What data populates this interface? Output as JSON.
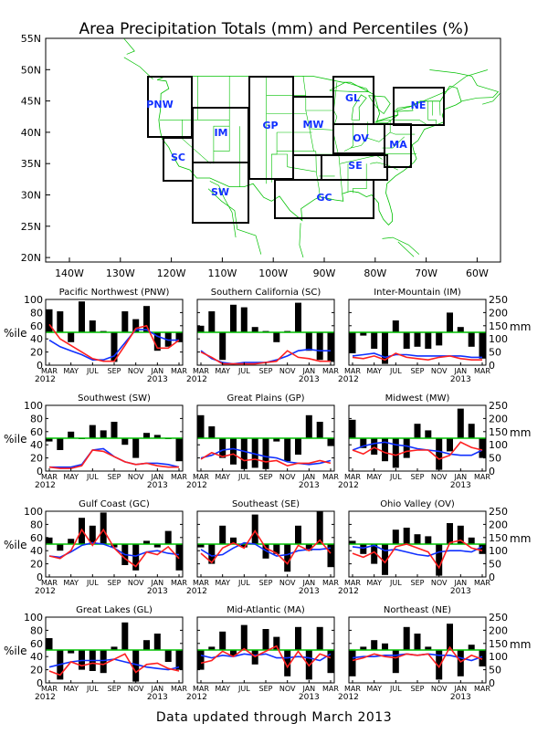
{
  "title": "Area Precipitation Totals (mm) and Percentiles (%)",
  "footer": "Data updated through March 2013",
  "colors": {
    "percentile_line": "#ff2020",
    "mm_line": "#1030ff",
    "median_line": "#00c000",
    "bars": "#000000",
    "map_lines": "#00c000",
    "region_labels": "#1030ff"
  },
  "map": {
    "lat_labels": [
      "55N",
      "50N",
      "45N",
      "40N",
      "35N",
      "30N",
      "25N",
      "20N"
    ],
    "lon_labels": [
      "140W",
      "130W",
      "120W",
      "110W",
      "100W",
      "90W",
      "80W",
      "70W",
      "60W"
    ],
    "regions": [
      "PNW",
      "SC",
      "IM",
      "SW",
      "GP",
      "MW",
      "GL",
      "OV",
      "MA",
      "SE",
      "GC",
      "NE"
    ]
  },
  "panel_common": {
    "pct_ticks": [
      "0",
      "20",
      "40",
      "60",
      "80",
      "100"
    ],
    "mm_ticks": [
      "0",
      "50",
      "100",
      "150",
      "200",
      "250"
    ],
    "pct_label": "%ile",
    "mm_label": "mm",
    "month_labels": [
      "MAR",
      "MAY",
      "JUL",
      "SEP",
      "NOV",
      "JAN",
      "MAR"
    ],
    "year_start": "2012",
    "year_mid": "2013"
  },
  "chart_data": [
    {
      "type": "bar",
      "title": "Pacific Northwest (PNW)",
      "ylim_pct": [
        0,
        100
      ],
      "ylim_mm": [
        0,
        250
      ],
      "months": [
        "Mar 2012",
        "Apr 2012",
        "May 2012",
        "Jun 2012",
        "Jul 2012",
        "Aug 2012",
        "Sep 2012",
        "Oct 2012",
        "Nov 2012",
        "Dec 2012",
        "Jan 2013",
        "Feb 2013",
        "Mar 2013"
      ],
      "series": [
        {
          "name": "percentile",
          "values": [
            85,
            82,
            35,
            97,
            68,
            52,
            5,
            82,
            70,
            90,
            22,
            28,
            35
          ]
        },
        {
          "name": "precip_mm",
          "values": [
            155,
            100,
            75,
            50,
            25,
            15,
            15,
            75,
            140,
            150,
            65,
            65,
            95
          ]
        },
        {
          "name": "normal_mm",
          "values": [
            95,
            70,
            55,
            40,
            20,
            20,
            35,
            85,
            135,
            135,
            110,
            95,
            95
          ]
        }
      ]
    },
    {
      "type": "bar",
      "title": "Southern California (SC)",
      "ylim_pct": [
        0,
        100
      ],
      "ylim_mm": [
        0,
        250
      ],
      "months": [
        "Mar 2012",
        "Apr 2012",
        "May 2012",
        "Jun 2012",
        "Jul 2012",
        "Aug 2012",
        "Sep 2012",
        "Oct 2012",
        "Nov 2012",
        "Dec 2012",
        "Jan 2013",
        "Feb 2013",
        "Mar 2013"
      ],
      "series": [
        {
          "name": "percentile",
          "values": [
            60,
            82,
            8,
            92,
            88,
            58,
            52,
            35,
            52,
            95,
            22,
            8,
            5
          ]
        },
        {
          "name": "precip_mm",
          "values": [
            50,
            30,
            5,
            5,
            5,
            5,
            10,
            15,
            55,
            30,
            25,
            15,
            15
          ]
        },
        {
          "name": "normal_mm",
          "values": [
            55,
            25,
            10,
            5,
            10,
            10,
            10,
            20,
            35,
            55,
            60,
            55,
            55
          ]
        }
      ]
    },
    {
      "type": "bar",
      "title": "Inter-Mountain (IM)",
      "ylim_pct": [
        0,
        100
      ],
      "ylim_mm": [
        0,
        250
      ],
      "months": [
        "Mar 2012",
        "Apr 2012",
        "May 2012",
        "Jun 2012",
        "Jul 2012",
        "Aug 2012",
        "Sep 2012",
        "Oct 2012",
        "Nov 2012",
        "Dec 2012",
        "Jan 2013",
        "Feb 2013",
        "Mar 2013"
      ],
      "series": [
        {
          "name": "percentile",
          "values": [
            18,
            45,
            25,
            2,
            68,
            25,
            28,
            25,
            30,
            80,
            58,
            28,
            10
          ]
        },
        {
          "name": "precip_mm",
          "values": [
            30,
            25,
            35,
            20,
            45,
            30,
            25,
            20,
            30,
            35,
            25,
            20,
            20
          ]
        },
        {
          "name": "normal_mm",
          "values": [
            35,
            40,
            45,
            30,
            40,
            40,
            35,
            35,
            35,
            35,
            35,
            30,
            30
          ]
        }
      ]
    },
    {
      "type": "bar",
      "title": "Southwest (SW)",
      "ylim_pct": [
        0,
        100
      ],
      "ylim_mm": [
        0,
        250
      ],
      "months": [
        "Mar 2012",
        "Apr 2012",
        "May 2012",
        "Jun 2012",
        "Jul 2012",
        "Aug 2012",
        "Sep 2012",
        "Oct 2012",
        "Nov 2012",
        "Dec 2012",
        "Jan 2013",
        "Feb 2013",
        "Mar 2013"
      ],
      "series": [
        {
          "name": "percentile",
          "values": [
            45,
            32,
            60,
            50,
            70,
            62,
            75,
            40,
            20,
            58,
            55,
            50,
            15
          ]
        },
        {
          "name": "precip_mm",
          "values": [
            15,
            10,
            10,
            20,
            80,
            75,
            55,
            35,
            25,
            30,
            20,
            15,
            15
          ]
        },
        {
          "name": "normal_mm",
          "values": [
            15,
            15,
            15,
            25,
            80,
            85,
            55,
            35,
            25,
            30,
            30,
            25,
            15
          ]
        }
      ]
    },
    {
      "type": "bar",
      "title": "Great Plains (GP)",
      "ylim_pct": [
        0,
        100
      ],
      "ylim_mm": [
        0,
        250
      ],
      "months": [
        "Mar 2012",
        "Apr 2012",
        "May 2012",
        "Jun 2012",
        "Jul 2012",
        "Aug 2012",
        "Sep 2012",
        "Oct 2012",
        "Nov 2012",
        "Dec 2012",
        "Jan 2013",
        "Feb 2013",
        "Mar 2013"
      ],
      "series": [
        {
          "name": "percentile",
          "values": [
            85,
            68,
            20,
            10,
            3,
            5,
            3,
            45,
            15,
            25,
            85,
            75,
            38
          ]
        },
        {
          "name": "precip_mm",
          "values": [
            45,
            70,
            55,
            65,
            40,
            45,
            35,
            40,
            20,
            30,
            30,
            40,
            30
          ]
        },
        {
          "name": "normal_mm",
          "values": [
            50,
            60,
            80,
            85,
            75,
            65,
            55,
            50,
            35,
            30,
            25,
            30,
            40
          ]
        }
      ]
    },
    {
      "type": "bar",
      "title": "Midwest (MW)",
      "ylim_pct": [
        0,
        100
      ],
      "ylim_mm": [
        0,
        250
      ],
      "months": [
        "Mar 2012",
        "Apr 2012",
        "May 2012",
        "Jun 2012",
        "Jul 2012",
        "Aug 2012",
        "Sep 2012",
        "Oct 2012",
        "Nov 2012",
        "Dec 2012",
        "Jan 2013",
        "Feb 2013",
        "Mar 2013"
      ],
      "series": [
        {
          "name": "percentile",
          "values": [
            78,
            35,
            25,
            15,
            5,
            20,
            72,
            62,
            2,
            30,
            95,
            72,
            20
          ]
        },
        {
          "name": "precip_mm",
          "values": [
            80,
            65,
            90,
            70,
            60,
            75,
            80,
            80,
            45,
            60,
            110,
            90,
            80
          ]
        },
        {
          "name": "normal_mm",
          "values": [
            80,
            95,
            105,
            110,
            100,
            95,
            85,
            80,
            75,
            65,
            60,
            60,
            80
          ]
        }
      ]
    },
    {
      "type": "bar",
      "title": "Gulf Coast (GC)",
      "ylim_pct": [
        0,
        100
      ],
      "ylim_mm": [
        0,
        250
      ],
      "months": [
        "Mar 2012",
        "Apr 2012",
        "May 2012",
        "Jun 2012",
        "Jul 2012",
        "Aug 2012",
        "Sep 2012",
        "Oct 2012",
        "Nov 2012",
        "Dec 2012",
        "Jan 2013",
        "Feb 2013",
        "Mar 2013"
      ],
      "series": [
        {
          "name": "percentile",
          "values": [
            60,
            40,
            58,
            90,
            78,
            98,
            45,
            18,
            10,
            55,
            45,
            70,
            10
          ]
        },
        {
          "name": "precip_mm",
          "values": [
            80,
            70,
            100,
            180,
            120,
            180,
            110,
            70,
            40,
            95,
            85,
            115,
            70
          ]
        },
        {
          "name": "normal_mm",
          "values": [
            80,
            75,
            95,
            120,
            130,
            125,
            110,
            85,
            80,
            95,
            100,
            90,
            85
          ]
        }
      ]
    },
    {
      "type": "bar",
      "title": "Southeast (SE)",
      "ylim_pct": [
        0,
        100
      ],
      "ylim_mm": [
        0,
        250
      ],
      "months": [
        "Mar 2012",
        "Apr 2012",
        "May 2012",
        "Jun 2012",
        "Jul 2012",
        "Aug 2012",
        "Sep 2012",
        "Oct 2012",
        "Nov 2012",
        "Dec 2012",
        "Jan 2013",
        "Feb 2013",
        "Mar 2013"
      ],
      "series": [
        {
          "name": "percentile",
          "values": [
            45,
            20,
            78,
            60,
            45,
            95,
            28,
            35,
            8,
            78,
            40,
            100,
            15
          ]
        },
        {
          "name": "precip_mm",
          "values": [
            90,
            55,
            110,
            130,
            110,
            175,
            110,
            90,
            50,
            120,
            100,
            140,
            90
          ]
        },
        {
          "name": "normal_mm",
          "values": [
            105,
            80,
            85,
            110,
            130,
            125,
            100,
            80,
            85,
            100,
            105,
            105,
            110
          ]
        }
      ]
    },
    {
      "type": "bar",
      "title": "Ohio Valley (OV)",
      "ylim_pct": [
        0,
        100
      ],
      "ylim_mm": [
        0,
        250
      ],
      "months": [
        "Mar 2012",
        "Apr 2012",
        "May 2012",
        "Jun 2012",
        "Jul 2012",
        "Aug 2012",
        "Sep 2012",
        "Oct 2012",
        "Nov 2012",
        "Dec 2012",
        "Jan 2013",
        "Feb 2013",
        "Mar 2013"
      ],
      "series": [
        {
          "name": "percentile",
          "values": [
            55,
            35,
            20,
            3,
            72,
            75,
            65,
            62,
            2,
            82,
            78,
            60,
            35
          ]
        },
        {
          "name": "precip_mm",
          "values": [
            90,
            75,
            95,
            55,
            115,
            125,
            110,
            95,
            35,
            130,
            140,
            110,
            100
          ]
        },
        {
          "name": "normal_mm",
          "values": [
            115,
            110,
            120,
            100,
            105,
            95,
            85,
            80,
            95,
            100,
            100,
            95,
            115
          ]
        }
      ]
    },
    {
      "type": "bar",
      "title": "Great Lakes (GL)",
      "ylim_pct": [
        0,
        100
      ],
      "ylim_mm": [
        0,
        250
      ],
      "months": [
        "Mar 2012",
        "Apr 2012",
        "May 2012",
        "Jun 2012",
        "Jul 2012",
        "Aug 2012",
        "Sep 2012",
        "Oct 2012",
        "Nov 2012",
        "Dec 2012",
        "Jan 2013",
        "Feb 2013",
        "Mar 2013"
      ],
      "series": [
        {
          "name": "percentile",
          "values": [
            68,
            5,
            45,
            20,
            18,
            15,
            55,
            92,
            2,
            65,
            75,
            32,
            20
          ]
        },
        {
          "name": "precip_mm",
          "values": [
            45,
            30,
            80,
            65,
            75,
            70,
            90,
            110,
            40,
            70,
            75,
            55,
            45
          ]
        },
        {
          "name": "normal_mm",
          "values": [
            60,
            70,
            80,
            85,
            85,
            85,
            90,
            80,
            70,
            60,
            55,
            50,
            60
          ]
        }
      ]
    },
    {
      "type": "bar",
      "title": "Mid-Atlantic (MA)",
      "ylim_pct": [
        0,
        100
      ],
      "ylim_mm": [
        0,
        250
      ],
      "months": [
        "Mar 2012",
        "Apr 2012",
        "May 2012",
        "Jun 2012",
        "Jul 2012",
        "Aug 2012",
        "Sep 2012",
        "Oct 2012",
        "Nov 2012",
        "Dec 2012",
        "Jan 2013",
        "Feb 2013",
        "Mar 2013"
      ],
      "series": [
        {
          "name": "percentile",
          "values": [
            20,
            55,
            78,
            40,
            88,
            28,
            82,
            70,
            10,
            85,
            5,
            85,
            15
          ]
        },
        {
          "name": "precip_mm",
          "values": [
            75,
            85,
            120,
            100,
            130,
            100,
            120,
            140,
            60,
            120,
            65,
            110,
            95
          ]
        },
        {
          "name": "normal_mm",
          "values": [
            105,
            95,
            105,
            100,
            110,
            105,
            110,
            95,
            95,
            100,
            95,
            85,
            110
          ]
        }
      ]
    },
    {
      "type": "bar",
      "title": "Northeast (NE)",
      "ylim_pct": [
        0,
        100
      ],
      "ylim_mm": [
        0,
        250
      ],
      "months": [
        "Mar 2012",
        "Apr 2012",
        "May 2012",
        "Jun 2012",
        "Jul 2012",
        "Aug 2012",
        "Sep 2012",
        "Oct 2012",
        "Nov 2012",
        "Dec 2012",
        "Jan 2013",
        "Feb 2013",
        "Mar 2013"
      ],
      "series": [
        {
          "name": "percentile",
          "values": [
            10,
            55,
            65,
            60,
            15,
            85,
            75,
            55,
            5,
            90,
            10,
            58,
            25
          ]
        },
        {
          "name": "precip_mm",
          "values": [
            85,
            95,
            110,
            100,
            95,
            110,
            105,
            110,
            60,
            135,
            80,
            105,
            90
          ]
        },
        {
          "name": "normal_mm",
          "values": [
            95,
            100,
            100,
            105,
            105,
            110,
            105,
            110,
            105,
            105,
            95,
            85,
            100
          ]
        }
      ]
    }
  ]
}
